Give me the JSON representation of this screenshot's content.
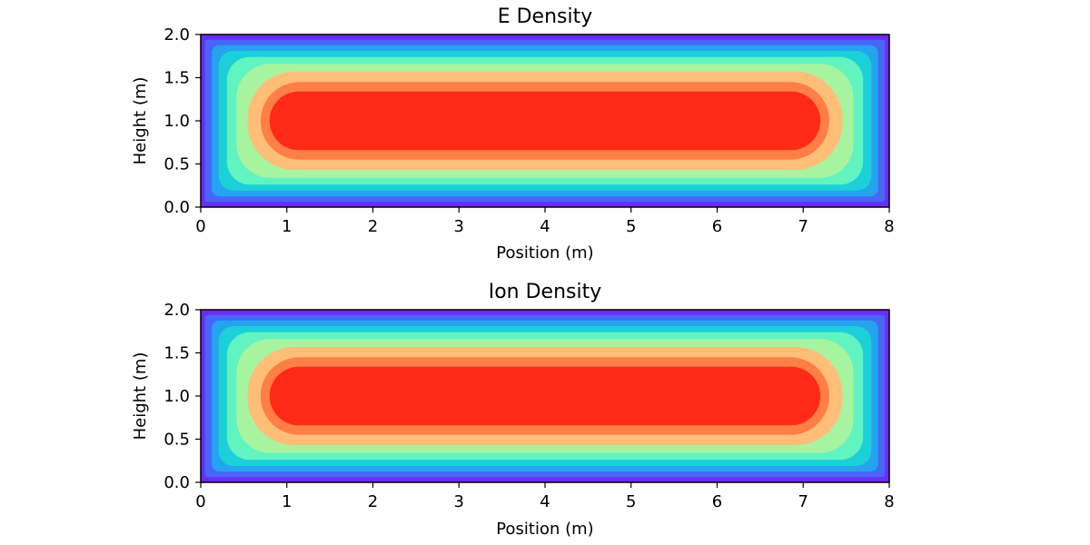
{
  "chart_data": [
    {
      "type": "contourf",
      "title": "E Density",
      "xlabel": "Position (m)",
      "ylabel": "Height (m)",
      "xlim": [
        0,
        8
      ],
      "ylim": [
        0,
        2
      ],
      "xticks": [
        0,
        1,
        2,
        3,
        4,
        5,
        6,
        7,
        8
      ],
      "xtick_labels": [
        "0",
        "1",
        "2",
        "3",
        "4",
        "5",
        "6",
        "7",
        "8"
      ],
      "yticks": [
        0.0,
        0.5,
        1.0,
        1.5,
        2.0
      ],
      "ytick_labels": [
        "0.0",
        "0.5",
        "1.0",
        "1.5",
        "2.0"
      ],
      "colormap": "rainbow",
      "levels": 8,
      "field": "peak at center (x≈4, y≈1.0), decaying to minimum at all four boundaries",
      "grid": false
    },
    {
      "type": "contourf",
      "title": "Ion Density",
      "xlabel": "Position (m)",
      "ylabel": "Height (m)",
      "xlim": [
        0,
        8
      ],
      "ylim": [
        0,
        2
      ],
      "xticks": [
        0,
        1,
        2,
        3,
        4,
        5,
        6,
        7,
        8
      ],
      "xtick_labels": [
        "0",
        "1",
        "2",
        "3",
        "4",
        "5",
        "6",
        "7",
        "8"
      ],
      "yticks": [
        0.0,
        0.5,
        1.0,
        1.5,
        2.0
      ],
      "ytick_labels": [
        "0.0",
        "0.5",
        "1.0",
        "1.5",
        "2.0"
      ],
      "colormap": "rainbow",
      "levels": 8,
      "field": "peak at center (x≈4, y≈1.0), decaying to minimum at all four boundaries",
      "grid": false
    }
  ],
  "colors": {
    "bands": [
      "#6a2cf9",
      "#4765f7",
      "#24a3ee",
      "#1bd0d9",
      "#61f3c0",
      "#a6f4a0",
      "#ffbe78",
      "#ff7f46",
      "#ff2a17"
    ]
  }
}
